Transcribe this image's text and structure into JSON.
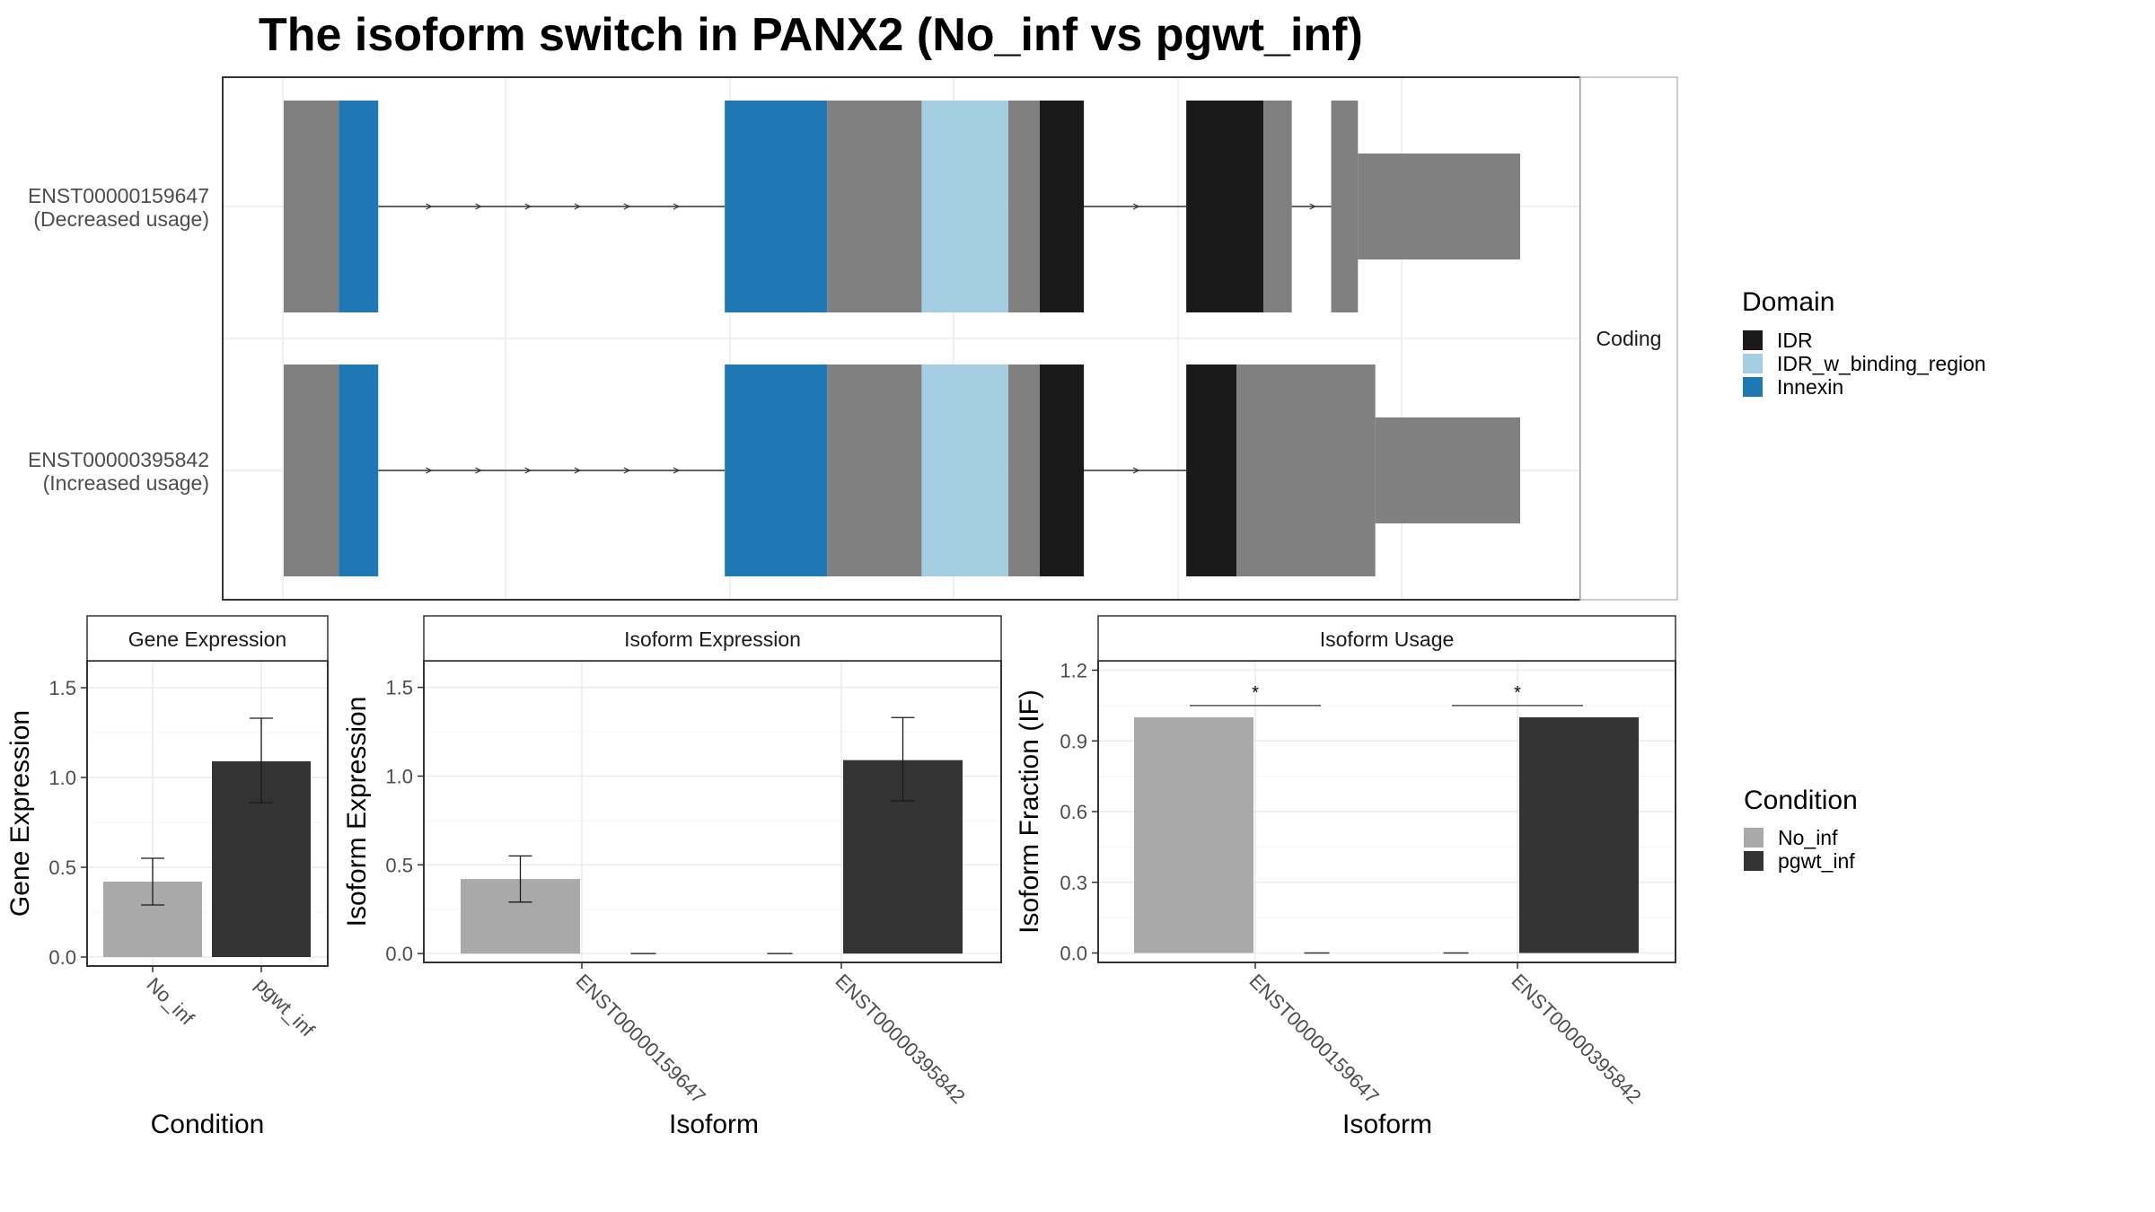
{
  "title": "The isoform switch in PANX2 (No_inf vs pgwt_inf)",
  "colors": {
    "IDR": "#1a1a1a",
    "IDR_w_binding_region": "#a6cee3",
    "Innexin": "#1f78b4",
    "other": "#808080",
    "No_inf": "#a9a9a9",
    "pgwt_inf": "#333333"
  },
  "chart_data": [
    {
      "type": "gene_structure",
      "strip_label": "Coding",
      "isoforms": [
        {
          "id": "ENST00000159647",
          "usage": "(Decreased usage)",
          "segments": [
            {
              "domain": "other",
              "start": 0,
              "end": 35,
              "part": "cds"
            },
            {
              "domain": "Innexin",
              "start": 35,
              "end": 60,
              "part": "cds"
            },
            {
              "domain": "Innexin",
              "start": 280,
              "end": 345,
              "part": "cds"
            },
            {
              "domain": "other",
              "start": 345,
              "end": 405,
              "part": "cds"
            },
            {
              "domain": "IDR_w_binding_region",
              "start": 405,
              "end": 460,
              "part": "cds"
            },
            {
              "domain": "other",
              "start": 460,
              "end": 480,
              "part": "cds"
            },
            {
              "domain": "IDR",
              "start": 480,
              "end": 508,
              "part": "cds"
            },
            {
              "domain": "IDR",
              "start": 573,
              "end": 622,
              "part": "cds"
            },
            {
              "domain": "other",
              "start": 622,
              "end": 640,
              "part": "cds"
            },
            {
              "domain": "other",
              "start": 665,
              "end": 682,
              "part": "cds"
            },
            {
              "domain": "other",
              "start": 682,
              "end": 785,
              "part": "utr"
            }
          ]
        },
        {
          "id": "ENST00000395842",
          "usage": "(Increased usage)",
          "segments": [
            {
              "domain": "other",
              "start": 0,
              "end": 35,
              "part": "cds"
            },
            {
              "domain": "Innexin",
              "start": 35,
              "end": 60,
              "part": "cds"
            },
            {
              "domain": "Innexin",
              "start": 280,
              "end": 345,
              "part": "cds"
            },
            {
              "domain": "other",
              "start": 345,
              "end": 405,
              "part": "cds"
            },
            {
              "domain": "IDR_w_binding_region",
              "start": 405,
              "end": 460,
              "part": "cds"
            },
            {
              "domain": "other",
              "start": 460,
              "end": 480,
              "part": "cds"
            },
            {
              "domain": "IDR",
              "start": 480,
              "end": 508,
              "part": "cds"
            },
            {
              "domain": "IDR",
              "start": 573,
              "end": 605,
              "part": "cds"
            },
            {
              "domain": "other",
              "start": 605,
              "end": 693,
              "part": "cds"
            },
            {
              "domain": "other",
              "start": 693,
              "end": 785,
              "part": "utr"
            }
          ]
        }
      ],
      "legend": {
        "title": "Domain",
        "entries": [
          "IDR",
          "IDR_w_binding_region",
          "Innexin"
        ]
      }
    },
    {
      "type": "bar",
      "strip": "Gene Expression",
      "xlabel": "Condition",
      "ylabel": "Gene Expression",
      "categories": [
        "No_inf",
        "pgwt_inf"
      ],
      "ylim": [
        -0.05,
        1.65
      ],
      "yticks": [
        "0.0",
        "0.5",
        "1.0",
        "1.5"
      ],
      "bars": [
        {
          "x": "No_inf",
          "condition": "No_inf",
          "value": 0.42,
          "err_low": 0.29,
          "err_high": 0.55
        },
        {
          "x": "pgwt_inf",
          "condition": "pgwt_inf",
          "value": 1.09,
          "err_low": 0.86,
          "err_high": 1.33
        }
      ]
    },
    {
      "type": "bar",
      "strip": "Isoform Expression",
      "xlabel": "Isoform",
      "ylabel": "Isoform Expression",
      "categories": [
        "ENST00000159647",
        "ENST00000395842"
      ],
      "ylim": [
        -0.05,
        1.65
      ],
      "yticks": [
        "0.0",
        "0.5",
        "1.0",
        "1.5"
      ],
      "bars": [
        {
          "x": "ENST00000159647",
          "condition": "No_inf",
          "value": 0.42,
          "err_low": 0.29,
          "err_high": 0.55
        },
        {
          "x": "ENST00000159647",
          "condition": "pgwt_inf",
          "value": 0.0,
          "err_low": 0.0,
          "err_high": 0.0
        },
        {
          "x": "ENST00000395842",
          "condition": "No_inf",
          "value": 0.0,
          "err_low": 0.0,
          "err_high": 0.0
        },
        {
          "x": "ENST00000395842",
          "condition": "pgwt_inf",
          "value": 1.09,
          "err_low": 0.86,
          "err_high": 1.33
        }
      ]
    },
    {
      "type": "bar",
      "strip": "Isoform Usage",
      "xlabel": "Isoform",
      "ylabel": "Isoform Fraction (IF)",
      "categories": [
        "ENST00000159647",
        "ENST00000395842"
      ],
      "ylim": [
        -0.04,
        1.24
      ],
      "yticks": [
        "0.0",
        "0.3",
        "0.6",
        "0.9",
        "1.2"
      ],
      "bars": [
        {
          "x": "ENST00000159647",
          "condition": "No_inf",
          "value": 1.0
        },
        {
          "x": "ENST00000159647",
          "condition": "pgwt_inf",
          "value": 0.0
        },
        {
          "x": "ENST00000395842",
          "condition": "No_inf",
          "value": 0.0
        },
        {
          "x": "ENST00000395842",
          "condition": "pgwt_inf",
          "value": 1.0
        }
      ],
      "significance": [
        {
          "x": "ENST00000159647",
          "label": "*",
          "y": 1.05
        },
        {
          "x": "ENST00000395842",
          "label": "*",
          "y": 1.05
        }
      ]
    }
  ],
  "condition_legend": {
    "title": "Condition",
    "entries": [
      "No_inf",
      "pgwt_inf"
    ]
  }
}
